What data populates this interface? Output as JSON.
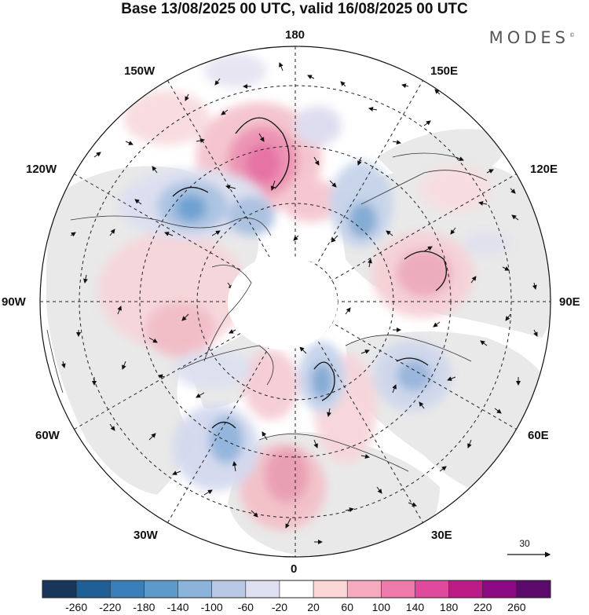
{
  "header": {
    "title": "Base 13/08/2025 00 UTC, valid 16/08/2025 00 UTC",
    "brand": "MODES",
    "brand_mark": "©"
  },
  "map": {
    "projection": "north-polar-stereographic",
    "lon_labels": {
      "top": "180",
      "bottom": "0",
      "left": "90W",
      "right": "90E",
      "upper_left_1": "150W",
      "upper_left_2": "120W",
      "upper_right_1": "150E",
      "upper_right_2": "120E",
      "lower_left_1": "60W",
      "lower_left_2": "30W",
      "lower_right_1": "60E",
      "lower_right_2": "30E"
    },
    "wind_reference": "30",
    "colors": {
      "neg_strong": "#3a78b8",
      "neg_mid": "#8fb2d9",
      "neg_weak": "#c9d6ea",
      "neg_faint": "#e3e3f2",
      "pos_faint": "#f7d9dc",
      "pos_weak": "#f0b8c0",
      "pos_mid": "#ec94b0",
      "pos_strong": "#e45f9c",
      "land": "#e8e8e8"
    }
  },
  "colorbar": {
    "ticks": [
      "-260",
      "-220",
      "-180",
      "-140",
      "-100",
      "-60",
      "-20",
      "20",
      "60",
      "100",
      "140",
      "180",
      "220",
      "260"
    ],
    "colors": [
      "#17365a",
      "#1f5f95",
      "#3a7fba",
      "#5c9acb",
      "#8cb3da",
      "#b9c9e5",
      "#dedff0",
      "#ffffff",
      "#fbd6d7",
      "#f6aac0",
      "#ee7bac",
      "#e04a9c",
      "#bd1b88",
      "#8c0a84",
      "#5c0a6c"
    ]
  }
}
